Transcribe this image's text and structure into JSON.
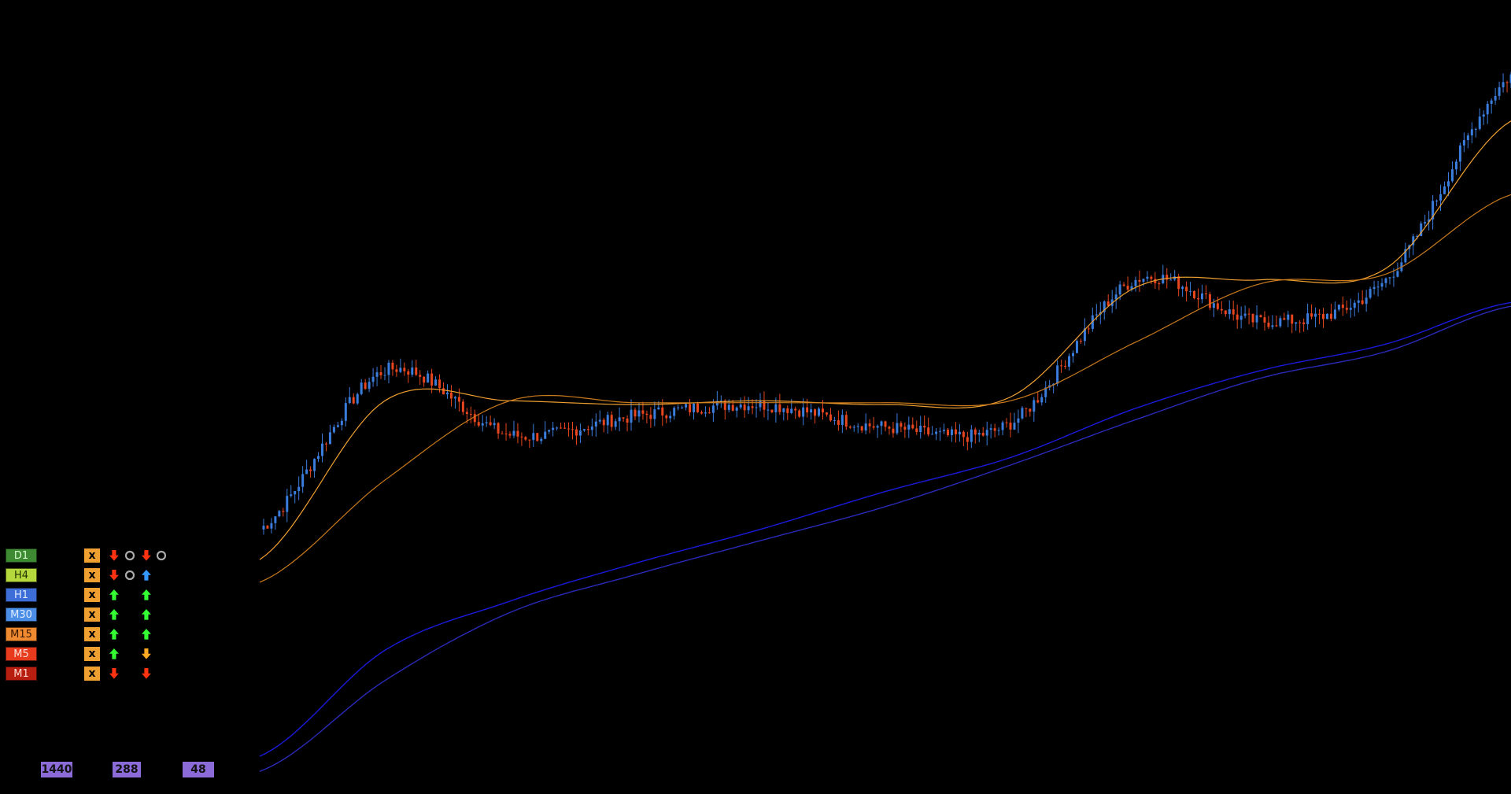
{
  "colors": {
    "background": "#000000",
    "bull_candle": "#3b7ddd",
    "bear_candle": "#e8461e",
    "ma_fast": "#f0a030",
    "ma_slow": "#c87a1c",
    "ma_long_1": "#1a1adc",
    "ma_long_2": "#2a2ab8",
    "arrow_up_green": "#33ff33",
    "arrow_up_blue": "#3399ff",
    "arrow_down_red": "#ff3311",
    "arrow_down_orange": "#ffaa22",
    "circle_gray": "#aaaaaa",
    "x_box": "#f0a030",
    "period_box": "#8a6bd8"
  },
  "timeframes": [
    {
      "label": "D1",
      "bg": "#3d8a32",
      "fg": "#d8ffd0",
      "s1": "down-red",
      "s2": "circle",
      "s3": "down-red",
      "s4": "circle"
    },
    {
      "label": "H4",
      "bg": "#b5d83c",
      "fg": "#223300",
      "s1": "down-red",
      "s2": "circle",
      "s3": "up-blue",
      "s4": ""
    },
    {
      "label": "H1",
      "bg": "#3d6ed8",
      "fg": "#e0ecff",
      "s1": "up-green",
      "s2": "",
      "s3": "up-green",
      "s4": ""
    },
    {
      "label": "M30",
      "bg": "#4a8ee8",
      "fg": "#e0ecff",
      "s1": "up-green",
      "s2": "",
      "s3": "up-green",
      "s4": ""
    },
    {
      "label": "M15",
      "bg": "#f08a30",
      "fg": "#3a1800",
      "s1": "up-green",
      "s2": "",
      "s3": "up-green",
      "s4": ""
    },
    {
      "label": "M5",
      "bg": "#e83a1c",
      "fg": "#ffe0d8",
      "s1": "up-green",
      "s2": "",
      "s3": "down-orange",
      "s4": ""
    },
    {
      "label": "M1",
      "bg": "#b81e10",
      "fg": "#ffd8d0",
      "s1": "down-red",
      "s2": "",
      "s3": "down-red",
      "s4": ""
    }
  ],
  "x_label": "x",
  "periods": [
    "1440",
    "288",
    "48"
  ],
  "chart_data": {
    "type": "line",
    "description_series": "candlestick price with moving averages",
    "x": [
      0,
      10,
      20,
      30,
      40,
      50,
      60,
      70,
      80,
      90,
      100
    ],
    "series": [
      {
        "values": [
          100,
          310,
          225,
          250,
          265,
          235,
          240,
          430,
          375,
          430,
          700
        ]
      },
      {
        "values": [
          60,
          270,
          270,
          265,
          270,
          265,
          275,
          420,
          430,
          445,
          640
        ]
      },
      {
        "values": [
          -200,
          -60,
          5,
          55,
          100,
          150,
          195,
          260,
          310,
          345,
          400
        ]
      },
      {
        "values": [
          -220,
          -100,
          -10,
          40,
          85,
          130,
          185,
          245,
          300,
          335,
          395
        ]
      }
    ],
    "ylim": [
      -250,
      800
    ],
    "grid": false
  }
}
